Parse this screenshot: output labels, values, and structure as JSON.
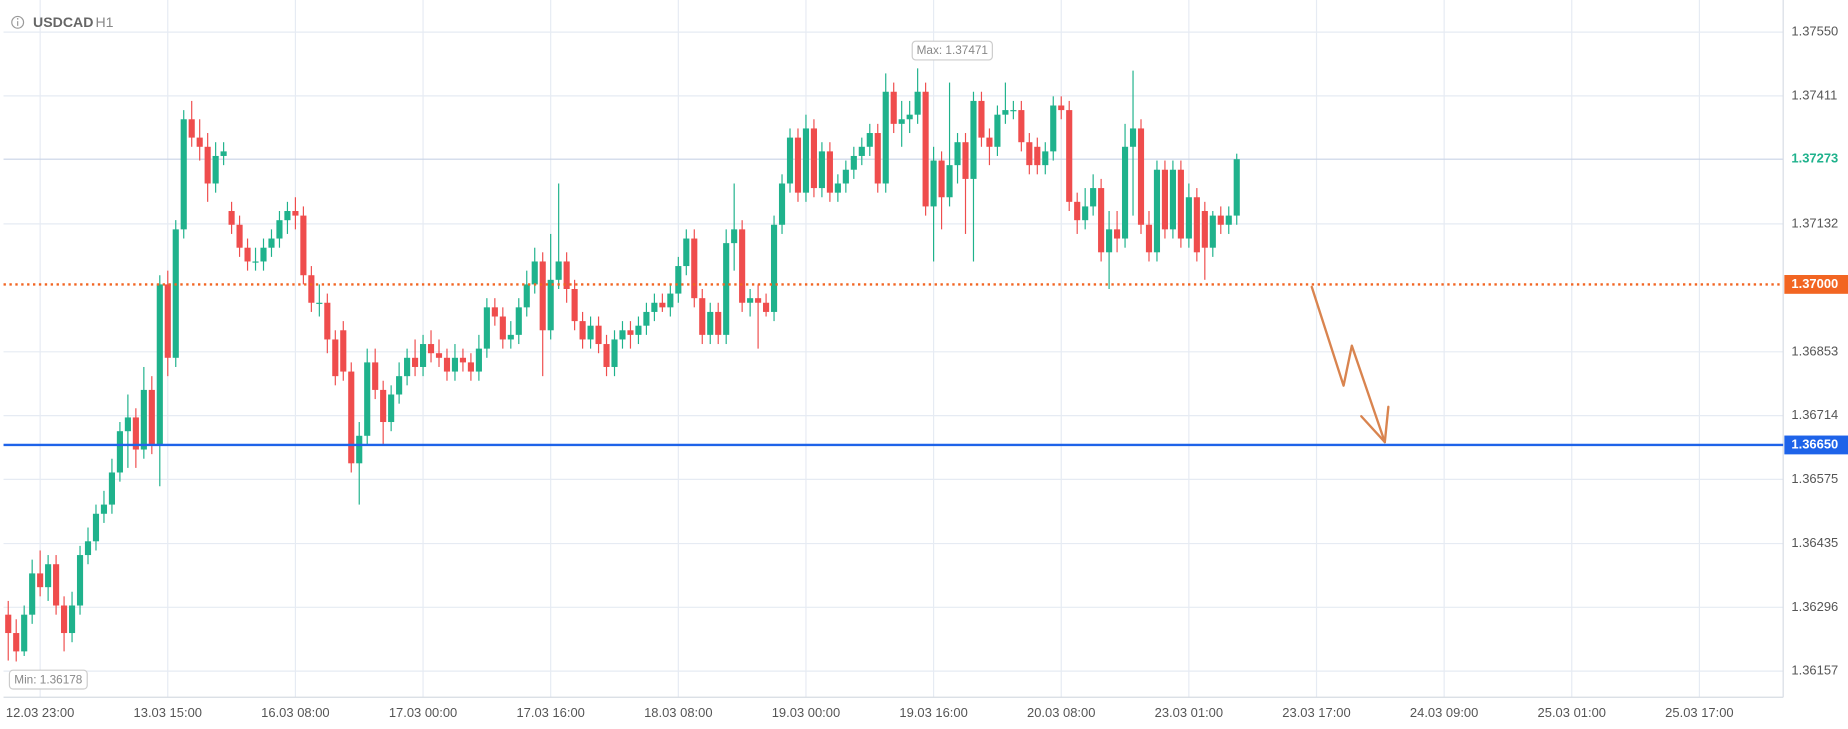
{
  "chart_data": {
    "type": "candlestick",
    "title": "USDCAD",
    "subtitle": "H1",
    "up_color": "#1fb28c",
    "down_color": "#ef4d4d",
    "ylim": [
      1.361,
      1.3762
    ],
    "yticks": [
      {
        "value": 1.3755,
        "label": "1.37550"
      },
      {
        "value": 1.37411,
        "label": "1.37411"
      },
      {
        "value": 1.37132,
        "label": "1.37132"
      },
      {
        "value": 1.36853,
        "label": "1.36853"
      },
      {
        "value": 1.36714,
        "label": "1.36714"
      },
      {
        "value": 1.36575,
        "label": "1.36575"
      },
      {
        "value": 1.36435,
        "label": "1.36435"
      },
      {
        "value": 1.36296,
        "label": "1.36296"
      },
      {
        "value": 1.36157,
        "label": "1.36157"
      }
    ],
    "grid": true,
    "current_price": {
      "value": 1.37273,
      "label": "1.37273",
      "color": "#1fb28c"
    },
    "lines": [
      {
        "value": 1.37,
        "label": "1.37000",
        "color": "#f26522",
        "style": "dotted"
      },
      {
        "value": 1.3665,
        "label": "1.36650",
        "color": "#1e63e9",
        "style": "solid"
      }
    ],
    "max_label": "Max: 1.37471",
    "min_label": "Min: 1.36178",
    "categories": [
      null,
      null,
      null,
      null,
      "12.03 23:00",
      null,
      null,
      null,
      null,
      null,
      null,
      null,
      null,
      null,
      null,
      null,
      null,
      null,
      null,
      null,
      "13.03 15:00",
      null,
      null,
      null,
      null,
      null,
      null,
      null,
      null,
      null,
      null,
      null,
      null,
      null,
      null,
      null,
      "16.03 08:00",
      null,
      null,
      null,
      null,
      null,
      null,
      null,
      null,
      null,
      null,
      null,
      null,
      null,
      null,
      null,
      "17.03 00:00",
      null,
      null,
      null,
      null,
      null,
      null,
      null,
      null,
      null,
      null,
      null,
      null,
      null,
      null,
      null,
      "17.03 16:00",
      null,
      null,
      null,
      null,
      null,
      null,
      null,
      null,
      null,
      null,
      null,
      null,
      null,
      null,
      null,
      "18.03 08:00",
      null,
      null,
      null,
      null,
      null,
      null,
      null,
      null,
      null,
      null,
      null,
      null,
      null,
      null,
      null,
      "19.03 00:00",
      null,
      null,
      null,
      null,
      null,
      null,
      null,
      null,
      null,
      null,
      null,
      null,
      null,
      null,
      null,
      "19.03 16:00",
      null,
      null,
      null,
      null,
      null,
      null,
      null,
      null,
      null,
      null,
      null,
      null,
      null,
      null,
      null,
      "20.03 08:00",
      null,
      null,
      null,
      null,
      null,
      null,
      null,
      null,
      null,
      null,
      null,
      null,
      null,
      null,
      null,
      "23.03 01:00",
      null,
      null,
      null,
      null,
      null,
      null,
      null,
      null,
      null,
      null,
      null,
      null,
      null,
      null,
      null,
      "23.03 17:00",
      null,
      null,
      null,
      null,
      null,
      null,
      null,
      null,
      null,
      null,
      null,
      null,
      null,
      null,
      null,
      "24.03 09:00",
      null,
      null,
      null,
      null,
      null,
      null,
      null,
      null,
      null,
      null,
      null,
      null,
      null,
      null,
      null,
      "25.03 01:00",
      null,
      null,
      null,
      null,
      null,
      null,
      null,
      null,
      null,
      null,
      null,
      null,
      null,
      null,
      null,
      "25.03 17:00",
      null,
      null,
      null,
      null,
      null,
      null,
      null,
      null,
      null,
      null
    ],
    "open": [
      1.3628,
      1.3624,
      1.362,
      1.3628,
      1.3637,
      1.3634,
      1.3639,
      1.363,
      1.3624,
      1.363,
      1.3641,
      1.3644,
      1.365,
      1.3652,
      1.3659,
      1.3668,
      1.3671,
      1.3664,
      1.3677,
      1.3665,
      1.37,
      1.3684,
      1.3712,
      1.3736,
      1.3732,
      1.373,
      1.3722,
      1.3728,
      1.3716,
      1.3713,
      1.3708,
      1.3705,
      1.3705,
      1.3708,
      1.371,
      1.3714,
      1.3716,
      1.3715,
      1.3702,
      1.3696,
      1.3696,
      1.3688,
      1.369,
      1.3681,
      1.3661,
      1.3667,
      1.3683,
      1.3677,
      1.367,
      1.3676,
      1.368,
      1.3684,
      1.3682,
      1.3687,
      1.3685,
      1.3684,
      1.3681,
      1.3684,
      1.3683,
      1.3681,
      1.3686,
      1.3695,
      1.3693,
      1.3688,
      1.3689,
      1.3695,
      1.37,
      1.3705,
      1.369,
      1.3701,
      1.3705,
      1.3699,
      1.3692,
      1.3688,
      1.3691,
      1.3687,
      1.3682,
      1.3688,
      1.369,
      1.3689,
      1.3691,
      1.3694,
      1.3696,
      1.3695,
      1.3698,
      1.3704,
      1.371,
      1.3697,
      1.3689,
      1.3694,
      1.3689,
      1.3709,
      1.3712,
      1.3696,
      1.3697,
      1.3696,
      1.3694,
      1.3713,
      1.3722,
      1.3732,
      1.372,
      1.3734,
      1.3721,
      1.3729,
      1.372,
      1.3722,
      1.3725,
      1.3728,
      1.373,
      1.3733,
      1.3722,
      1.3742,
      1.3735,
      1.3736,
      1.3737,
      1.3742,
      1.3717,
      1.3727,
      1.3719,
      1.3726,
      1.3731,
      1.3723,
      1.374,
      1.3732,
      1.373,
      1.3737,
      1.3738,
      1.3738,
      1.3731,
      1.373,
      1.3726,
      1.3729,
      1.3739,
      1.3738,
      1.3718,
      1.3714,
      1.3717,
      1.3721,
      1.3707,
      1.3712,
      1.371,
      1.373,
      1.3734,
      1.3713,
      1.3707,
      1.3725,
      1.3712,
      1.3725,
      1.371,
      1.3719,
      1.3716,
      1.3708,
      1.3715,
      1.3713,
      1.3715,
      null,
      null,
      null,
      null,
      null,
      null,
      null,
      null,
      null,
      null,
      null,
      null,
      null,
      null,
      null,
      null,
      null,
      null,
      null,
      null,
      null,
      null,
      null,
      null,
      null,
      null,
      null,
      null,
      null,
      null,
      null,
      null,
      null,
      null,
      null,
      null,
      null,
      null,
      null,
      null,
      null,
      null,
      null,
      null,
      null,
      null,
      null,
      null,
      null,
      null,
      null,
      null,
      null,
      null,
      null,
      null,
      null,
      null,
      null,
      null,
      null,
      null,
      null,
      null,
      null,
      null,
      null,
      null
    ],
    "high": [
      1.3631,
      1.3627,
      1.363,
      1.364,
      1.3642,
      1.3641,
      1.3641,
      1.3632,
      1.3633,
      1.3643,
      1.3647,
      1.3652,
      1.3655,
      1.3662,
      1.367,
      1.3676,
      1.3673,
      1.3682,
      1.368,
      1.3702,
      1.3703,
      1.3714,
      1.3738,
      1.374,
      1.3736,
      1.3733,
      1.3731,
      1.3731,
      1.3718,
      1.3715,
      1.371,
      1.3708,
      1.371,
      1.3712,
      1.3716,
      1.3718,
      1.3719,
      1.3717,
      1.3704,
      1.37,
      1.3698,
      1.369,
      1.3692,
      1.3683,
      1.367,
      1.3686,
      1.3686,
      1.3679,
      1.3678,
      1.3683,
      1.3686,
      1.3688,
      1.3689,
      1.369,
      1.3688,
      1.3686,
      1.3687,
      1.3686,
      1.3685,
      1.3689,
      1.3697,
      1.3697,
      1.3695,
      1.3692,
      1.3697,
      1.3703,
      1.3708,
      1.3707,
      1.3711,
      1.3722,
      1.3707,
      1.3701,
      1.3694,
      1.3693,
      1.3693,
      1.3689,
      1.369,
      1.3692,
      1.3692,
      1.3693,
      1.3696,
      1.3698,
      1.3698,
      1.37,
      1.3706,
      1.3712,
      1.3712,
      1.3699,
      1.3696,
      1.3696,
      1.3712,
      1.3722,
      1.3714,
      1.3699,
      1.37,
      1.3698,
      1.3715,
      1.3724,
      1.3734,
      1.3734,
      1.3737,
      1.3736,
      1.3731,
      1.3731,
      1.3724,
      1.3727,
      1.373,
      1.3732,
      1.3735,
      1.3735,
      1.3746,
      1.3744,
      1.374,
      1.374,
      1.37471,
      1.3744,
      1.373,
      1.3729,
      1.3744,
      1.3733,
      1.3733,
      1.3742,
      1.3742,
      1.3734,
      1.3739,
      1.3744,
      1.374,
      1.374,
      1.3733,
      1.3732,
      1.3731,
      1.3741,
      1.3741,
      1.374,
      1.372,
      1.3721,
      1.3724,
      1.3723,
      1.3716,
      1.3716,
      1.3735,
      1.37466,
      1.3736,
      1.3716,
      1.3727,
      1.3727,
      1.3727,
      1.3727,
      1.3722,
      1.3721,
      1.3718,
      1.3716,
      1.3717,
      1.3717,
      1.37285,
      null,
      null,
      null,
      null,
      null,
      null,
      null,
      null,
      null,
      null,
      null,
      null,
      null,
      null,
      null,
      null,
      null,
      null,
      null,
      null,
      null,
      null,
      null,
      null,
      null,
      null,
      null,
      null,
      null,
      null,
      null,
      null,
      null,
      null,
      null,
      null,
      null,
      null,
      null,
      null,
      null,
      null,
      null,
      null,
      null,
      null,
      null,
      null,
      null,
      null,
      null,
      null,
      null,
      null,
      null,
      null,
      null,
      null,
      null,
      null,
      null,
      null,
      null,
      null,
      null,
      null,
      null,
      null
    ],
    "low": [
      1.3618,
      1.36178,
      1.3619,
      1.3626,
      1.3632,
      1.3631,
      1.3628,
      1.362,
      1.3622,
      1.3628,
      1.3639,
      1.3642,
      1.3648,
      1.365,
      1.3657,
      1.366,
      1.366,
      1.3662,
      1.3663,
      1.3656,
      1.368,
      1.3682,
      1.371,
      1.373,
      1.3727,
      1.3718,
      1.372,
      1.3726,
      1.3711,
      1.3706,
      1.3703,
      1.3703,
      1.3703,
      1.3706,
      1.3708,
      1.3711,
      1.3712,
      1.37,
      1.3694,
      1.3693,
      1.3685,
      1.3678,
      1.3679,
      1.3659,
      1.3652,
      1.3665,
      1.3675,
      1.3665,
      1.3668,
      1.3674,
      1.3678,
      1.368,
      1.368,
      1.3683,
      1.3682,
      1.3679,
      1.3679,
      1.3681,
      1.3679,
      1.3679,
      1.3684,
      1.3691,
      1.3686,
      1.3686,
      1.3687,
      1.3693,
      1.3698,
      1.368,
      1.3688,
      1.3699,
      1.3696,
      1.369,
      1.3686,
      1.3686,
      1.3685,
      1.368,
      1.368,
      1.3686,
      1.3686,
      1.3687,
      1.3689,
      1.3692,
      1.3694,
      1.3693,
      1.3696,
      1.3702,
      1.3695,
      1.3687,
      1.3687,
      1.3687,
      1.3687,
      1.3703,
      1.3694,
      1.3693,
      1.3686,
      1.3693,
      1.3692,
      1.3711,
      1.372,
      1.3718,
      1.3718,
      1.3719,
      1.3719,
      1.3718,
      1.3718,
      1.372,
      1.3723,
      1.3726,
      1.3728,
      1.372,
      1.372,
      1.3733,
      1.373,
      1.3733,
      1.3735,
      1.3715,
      1.3705,
      1.3712,
      1.3717,
      1.3722,
      1.3711,
      1.3705,
      1.373,
      1.3726,
      1.3728,
      1.3735,
      1.3736,
      1.3729,
      1.3724,
      1.3724,
      1.3724,
      1.3727,
      1.3736,
      1.3716,
      1.3711,
      1.3712,
      1.3715,
      1.3705,
      1.3699,
      1.3707,
      1.3708,
      1.3715,
      1.3711,
      1.3705,
      1.3705,
      1.371,
      1.371,
      1.3708,
      1.3708,
      1.3705,
      1.3701,
      1.3706,
      1.3711,
      1.3711,
      1.3713,
      null,
      null,
      null,
      null,
      null,
      null,
      null,
      null,
      null,
      null,
      null,
      null,
      null,
      null,
      null,
      null,
      null,
      null,
      null,
      null,
      null,
      null,
      null,
      null,
      null,
      null,
      null,
      null,
      null,
      null,
      null,
      null,
      null,
      null,
      null,
      null,
      null,
      null,
      null,
      null,
      null,
      null,
      null,
      null,
      null,
      null,
      null,
      null,
      null,
      null,
      null,
      null,
      null,
      null,
      null,
      null,
      null,
      null,
      null,
      null,
      null,
      null,
      null,
      null,
      null,
      null,
      null,
      null
    ],
    "close": [
      1.3624,
      1.362,
      1.3628,
      1.3637,
      1.3634,
      1.3639,
      1.363,
      1.3624,
      1.363,
      1.3641,
      1.3644,
      1.365,
      1.3652,
      1.3659,
      1.3668,
      1.3671,
      1.3664,
      1.3677,
      1.3665,
      1.37,
      1.3684,
      1.3712,
      1.3736,
      1.3732,
      1.373,
      1.3722,
      1.3728,
      1.3729,
      1.3713,
      1.3708,
      1.3705,
      1.3705,
      1.3708,
      1.371,
      1.3714,
      1.3716,
      1.3715,
      1.3702,
      1.3696,
      1.3696,
      1.3688,
      1.368,
      1.3681,
      1.3661,
      1.3667,
      1.3683,
      1.3677,
      1.367,
      1.3676,
      1.368,
      1.3684,
      1.3682,
      1.3687,
      1.3685,
      1.3684,
      1.3681,
      1.3684,
      1.3683,
      1.3681,
      1.3686,
      1.3695,
      1.3693,
      1.3688,
      1.3689,
      1.3695,
      1.37,
      1.3705,
      1.369,
      1.3701,
      1.3705,
      1.3699,
      1.3692,
      1.3688,
      1.3691,
      1.3687,
      1.3682,
      1.3688,
      1.369,
      1.3689,
      1.3691,
      1.3694,
      1.3696,
      1.3695,
      1.3698,
      1.3704,
      1.371,
      1.3697,
      1.3689,
      1.3694,
      1.3689,
      1.3709,
      1.3712,
      1.3696,
      1.3697,
      1.3696,
      1.3694,
      1.3713,
      1.3722,
      1.3732,
      1.372,
      1.3734,
      1.3721,
      1.3729,
      1.372,
      1.3722,
      1.3725,
      1.3728,
      1.373,
      1.3733,
      1.3722,
      1.3742,
      1.3735,
      1.3736,
      1.3737,
      1.3742,
      1.3717,
      1.3727,
      1.3719,
      1.3726,
      1.3731,
      1.3723,
      1.374,
      1.3732,
      1.373,
      1.3737,
      1.3738,
      1.3738,
      1.3731,
      1.3726,
      1.3726,
      1.3729,
      1.3739,
      1.3738,
      1.3718,
      1.3714,
      1.3717,
      1.3721,
      1.3707,
      1.3712,
      1.371,
      1.373,
      1.3734,
      1.3713,
      1.3707,
      1.3725,
      1.3712,
      1.3725,
      1.371,
      1.3719,
      1.3707,
      1.3708,
      1.3715,
      1.3713,
      1.3715,
      1.37273,
      null,
      null,
      null,
      null,
      null,
      null,
      null,
      null,
      null,
      null,
      null,
      null,
      null,
      null,
      null,
      null,
      null,
      null,
      null,
      null,
      null,
      null,
      null,
      null,
      null,
      null,
      null,
      null,
      null,
      null,
      null,
      null,
      null,
      null,
      null,
      null,
      null,
      null,
      null,
      null,
      null,
      null,
      null,
      null,
      null,
      null,
      null,
      null,
      null,
      null,
      null,
      null,
      null,
      null,
      null,
      null,
      null,
      null,
      null,
      null,
      null,
      null,
      null,
      null,
      null,
      null,
      null,
      null
    ]
  }
}
